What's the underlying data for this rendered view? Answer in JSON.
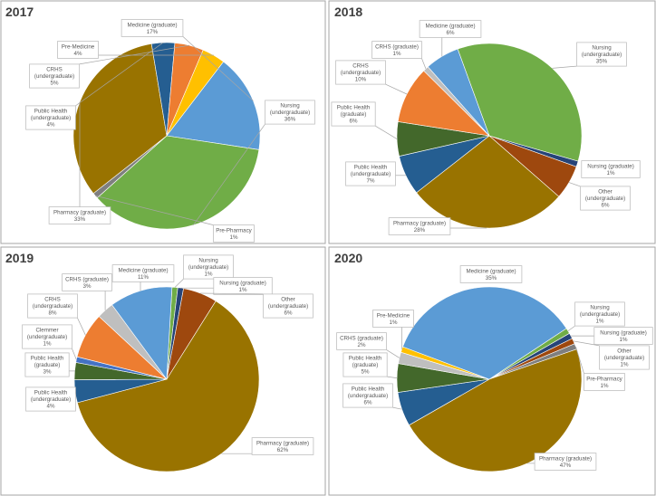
{
  "colors": {
    "pharmacy": "#997300",
    "medicine": "#5b9bd5",
    "nursing_ug": "#70ad47",
    "nursing_g": "#264478",
    "public_health_ug": "#255e91",
    "public_health_g": "#43682b",
    "crhs_ug": "#ed7d31",
    "crhs_g": "#bfbfbf",
    "pre_medicine": "#ffc000",
    "pre_pharmacy": "#7f7f7f",
    "other_ug": "#9e480e",
    "clemmer_ug": "#4472c4"
  },
  "chart_data": [
    {
      "type": "pie",
      "title": "2017",
      "slices": [
        {
          "label": "Medicine (graduate)",
          "value": 17,
          "pct": "17%",
          "color": "#5b9bd5"
        },
        {
          "label": "Nursing (undergraduate)",
          "value": 36,
          "pct": "36%",
          "color": "#70ad47"
        },
        {
          "label": "Pre-Pharmacy",
          "value": 1,
          "pct": "1%",
          "color": "#7f7f7f"
        },
        {
          "label": "Pharmacy (graduate)",
          "value": 33,
          "pct": "33%",
          "color": "#997300"
        },
        {
          "label": "Public Health (undergraduate)",
          "value": 4,
          "pct": "4%",
          "color": "#255e91"
        },
        {
          "label": "CRHS (undergraduate)",
          "value": 5,
          "pct": "5%",
          "color": "#ed7d31"
        },
        {
          "label": "Pre-Medicine",
          "value": 4,
          "pct": "4%",
          "color": "#ffc000"
        }
      ]
    },
    {
      "type": "pie",
      "title": "2018",
      "slices": [
        {
          "label": "Nursing (undergraduate)",
          "value": 35,
          "pct": "35%",
          "color": "#70ad47"
        },
        {
          "label": "Nursing (graduate)",
          "value": 1,
          "pct": "1%",
          "color": "#264478"
        },
        {
          "label": "Other (undergraduate)",
          "value": 6,
          "pct": "6%",
          "color": "#9e480e"
        },
        {
          "label": "Pharmacy (graduate)",
          "value": 28,
          "pct": "28%",
          "color": "#997300"
        },
        {
          "label": "Public Health (undergraduate)",
          "value": 7,
          "pct": "7%",
          "color": "#255e91"
        },
        {
          "label": "Public Health (graduate)",
          "value": 6,
          "pct": "6%",
          "color": "#43682b"
        },
        {
          "label": "CRHS (undergraduate)",
          "value": 10,
          "pct": "10%",
          "color": "#ed7d31"
        },
        {
          "label": "CRHS (graduate)",
          "value": 1,
          "pct": "1%",
          "color": "#bfbfbf"
        },
        {
          "label": "Medicine (graduate)",
          "value": 6,
          "pct": "6%",
          "color": "#5b9bd5"
        }
      ]
    },
    {
      "type": "pie",
      "title": "2019",
      "slices": [
        {
          "label": "Nursing (undergraduate)",
          "value": 1,
          "pct": "1%",
          "color": "#70ad47"
        },
        {
          "label": "Nursing (graduate)",
          "value": 1,
          "pct": "1%",
          "color": "#264478"
        },
        {
          "label": "Other (undergraduate)",
          "value": 6,
          "pct": "6%",
          "color": "#9e480e"
        },
        {
          "label": "Pharmacy (graduate)",
          "value": 62,
          "pct": "62%",
          "color": "#997300"
        },
        {
          "label": "Public Health (undergraduate)",
          "value": 4,
          "pct": "4%",
          "color": "#255e91"
        },
        {
          "label": "Public Health (graduate)",
          "value": 3,
          "pct": "3%",
          "color": "#43682b"
        },
        {
          "label": "Clemmer (undergraduate)",
          "value": 1,
          "pct": "1%",
          "color": "#4472c4"
        },
        {
          "label": "CRHS (undergraduate)",
          "value": 8,
          "pct": "8%",
          "color": "#ed7d31"
        },
        {
          "label": "CRHS (graduate)",
          "value": 3,
          "pct": "3%",
          "color": "#bfbfbf"
        },
        {
          "label": "Medicine (graduate)",
          "value": 11,
          "pct": "11%",
          "color": "#5b9bd5"
        }
      ]
    },
    {
      "type": "pie",
      "title": "2020",
      "slices": [
        {
          "label": "Nursing (undergraduate)",
          "value": 1,
          "pct": "1%",
          "color": "#70ad47"
        },
        {
          "label": "Nursing (graduate)",
          "value": 1,
          "pct": "1%",
          "color": "#264478"
        },
        {
          "label": "Other (undergraduate)",
          "value": 1,
          "pct": "1%",
          "color": "#9e480e"
        },
        {
          "label": "Pre-Pharmacy",
          "value": 1,
          "pct": "1%",
          "color": "#7f7f7f"
        },
        {
          "label": "Pharmacy (graduate)",
          "value": 47,
          "pct": "47%",
          "color": "#997300"
        },
        {
          "label": "Public Health (undergraduate)",
          "value": 6,
          "pct": "6%",
          "color": "#255e91"
        },
        {
          "label": "Public Health (graduate)",
          "value": 5,
          "pct": "5%",
          "color": "#43682b"
        },
        {
          "label": "CRHS (graduate)",
          "value": 2,
          "pct": "2%",
          "color": "#bfbfbf"
        },
        {
          "label": "Pre-Medicine",
          "value": 1,
          "pct": "1%",
          "color": "#ffc000"
        },
        {
          "label": "Medicine (graduate)",
          "value": 35,
          "pct": "35%",
          "color": "#5b9bd5"
        }
      ]
    }
  ]
}
